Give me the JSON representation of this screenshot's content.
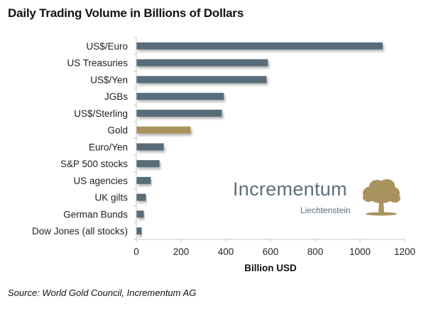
{
  "chart_data": {
    "type": "bar",
    "orientation": "horizontal",
    "title": "Daily Trading Volume in Billions of Dollars",
    "xlabel": "Billion USD",
    "ylabel": "",
    "xlim": [
      0,
      1200
    ],
    "xticks": [
      0,
      200,
      400,
      600,
      800,
      1000,
      1200
    ],
    "grid": false,
    "categories": [
      "US$/Euro",
      "US Treasuries",
      "US$/Yen",
      "JGBs",
      "US$/Sterling",
      "Gold",
      "Euro/Yen",
      "S&P 500 stocks",
      "US agencies",
      "UK gilts",
      "German Bunds",
      "Dow Jones (all stocks)"
    ],
    "values": [
      1100,
      587,
      581,
      390,
      381,
      241,
      121,
      102,
      63,
      41,
      32,
      22
    ],
    "highlight": "Gold",
    "colors": {
      "default": "#596c79",
      "highlight": "#a8935f"
    }
  },
  "logo": {
    "name": "Incrementum",
    "subtitle": "Liechtenstein",
    "text_color": "#5d6e78",
    "tree_color": "#a8935f"
  },
  "source": "Source: World Gold Council, Incrementum AG"
}
